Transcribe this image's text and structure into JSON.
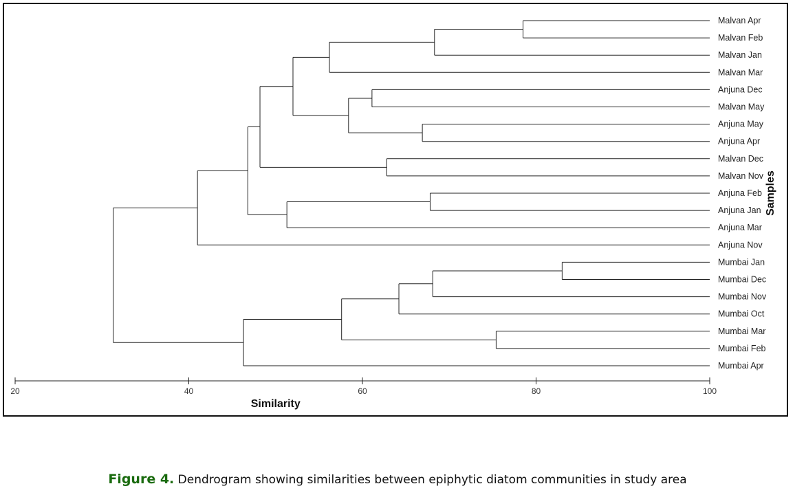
{
  "caption": {
    "label": "Figure 4.",
    "text": " Dendrogram showing similarities between epiphytic diatom communities in study area"
  },
  "chart_data": {
    "type": "dendrogram",
    "xlabel": "Similarity",
    "ylabel": "Samples",
    "xlim": [
      20,
      100
    ],
    "xticks": [
      20,
      40,
      60,
      80,
      100
    ],
    "colors": {
      "lines": "#222222",
      "frame": "#111111",
      "caption_label": "#1a6b0f"
    },
    "leaves": [
      "Malvan Apr",
      "Malvan Feb",
      "Malvan Jan",
      "Malvan Mar",
      "Anjuna Dec",
      "Malvan May",
      "Anjuna May",
      "Anjuna Apr",
      "Malvan Dec",
      "Malvan Nov",
      "Anjuna Feb",
      "Anjuna Jan",
      "Anjuna Mar",
      "Anjuna Nov",
      "Mumbai Jan",
      "Mumbai Dec",
      "Mumbai Nov",
      "Mumbai Oct",
      "Mumbai Mar",
      "Mumbai Feb",
      "Mumbai Apr"
    ],
    "merges": [
      {
        "a": "Malvan Apr",
        "b": "Malvan Feb",
        "similarity": 78.5,
        "id": "m1"
      },
      {
        "a": "m1",
        "b": "Malvan Jan",
        "similarity": 68.3,
        "id": "m2"
      },
      {
        "a": "m2",
        "b": "Malvan Mar",
        "similarity": 56.2,
        "id": "m3"
      },
      {
        "a": "Anjuna Dec",
        "b": "Malvan May",
        "similarity": 61.1,
        "id": "m4"
      },
      {
        "a": "Anjuna May",
        "b": "Anjuna Apr",
        "similarity": 66.9,
        "id": "m5"
      },
      {
        "a": "m4",
        "b": "m5",
        "similarity": 58.4,
        "id": "m6"
      },
      {
        "a": "m3",
        "b": "m6",
        "similarity": 52.0,
        "id": "m7"
      },
      {
        "a": "Malvan Dec",
        "b": "Malvan Nov",
        "similarity": 62.8,
        "id": "m8"
      },
      {
        "a": "m7",
        "b": "m8",
        "similarity": 48.2,
        "id": "m9"
      },
      {
        "a": "Anjuna Feb",
        "b": "Anjuna Jan",
        "similarity": 67.8,
        "id": "m10"
      },
      {
        "a": "m10",
        "b": "Anjuna Mar",
        "similarity": 51.3,
        "id": "m11"
      },
      {
        "a": "m9",
        "b": "m11",
        "similarity": 46.8,
        "id": "m12"
      },
      {
        "a": "m12",
        "b": "Anjuna Nov",
        "similarity": 41.0,
        "id": "m13"
      },
      {
        "a": "Mumbai Jan",
        "b": "Mumbai Dec",
        "similarity": 83.0,
        "id": "m14"
      },
      {
        "a": "m14",
        "b": "Mumbai Nov",
        "similarity": 68.1,
        "id": "m15"
      },
      {
        "a": "m15",
        "b": "Mumbai Oct",
        "similarity": 64.2,
        "id": "m16"
      },
      {
        "a": "Mumbai Mar",
        "b": "Mumbai Feb",
        "similarity": 75.4,
        "id": "m17"
      },
      {
        "a": "m16",
        "b": "m17",
        "similarity": 57.6,
        "id": "m18"
      },
      {
        "a": "m18",
        "b": "Mumbai Apr",
        "similarity": 46.3,
        "id": "m19"
      },
      {
        "a": "m13",
        "b": "m19",
        "similarity": 31.3,
        "id": "m20"
      }
    ]
  }
}
